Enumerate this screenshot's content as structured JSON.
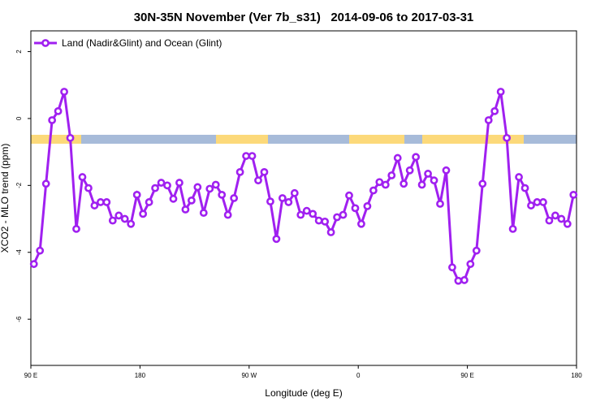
{
  "chart_data": {
    "type": "line",
    "title": "30N-35N November (Ver 7b_s31)   2014-09-06 to 2017-03-31",
    "x_label": "Longitude (deg E)",
    "y_label": "XCO2 - MLO trend (ppm)",
    "xlim": [
      90,
      540
    ],
    "ylim": [
      -7.38,
      2.62
    ],
    "xticks": [
      {
        "value": 90,
        "label": "90 E"
      },
      180,
      {
        "value": 270,
        "label": "90 W"
      },
      {
        "value": 360,
        "label": "0"
      },
      {
        "value": 450,
        "label": "90 E"
      },
      {
        "value": 540,
        "label": "180"
      }
    ],
    "yticks": [
      2,
      0,
      -2,
      -4,
      -6
    ],
    "legend": "top-left",
    "x": [
      92.5,
      97.5,
      102.5,
      107.5,
      112.5,
      117.5,
      122.5,
      127.5,
      132.5,
      137.5,
      142.5,
      147.5,
      152.5,
      157.5,
      162.5,
      167.5,
      172.5,
      177.5,
      182.5,
      187.5,
      192.5,
      197.5,
      202.5,
      207.5,
      212.5,
      217.5,
      222.5,
      227.5,
      232.5,
      237.5,
      242.5,
      247.5,
      252.5,
      257.5,
      262.5,
      267.5,
      272.5,
      277.5,
      282.5,
      287.5,
      292.5,
      297.5,
      302.5,
      307.5,
      312.5,
      317.5,
      322.5,
      327.5,
      332.5,
      337.5,
      342.5,
      347.5,
      352.5,
      357.5,
      362.5,
      367.5,
      372.5,
      377.5,
      382.5,
      387.5,
      392.5,
      397.5,
      402.5,
      407.5,
      412.5,
      417.5,
      422.5,
      427.5,
      432.5,
      437.5,
      442.5,
      447.5,
      452.5,
      457.5,
      462.5,
      467.5,
      472.5,
      477.5,
      482.5,
      487.5,
      492.5,
      497.5,
      502.5,
      507.5,
      512.5,
      517.5,
      522.5,
      527.5,
      532.5,
      537.5
    ],
    "series": [
      {
        "name": "Land (Nadir&Glint) and Ocean (Glint)",
        "color": "#a020f0",
        "values": [
          -4.35,
          -3.95,
          -1.95,
          -0.05,
          0.22,
          0.8,
          -0.58,
          -3.3,
          -1.75,
          -2.08,
          -2.6,
          -2.5,
          -2.5,
          -3.05,
          -2.9,
          -3.0,
          -3.15,
          -2.28,
          -2.85,
          -2.5,
          -2.08,
          -1.92,
          -2.0,
          -2.4,
          -1.92,
          -2.72,
          -2.45,
          -2.05,
          -2.82,
          -2.1,
          -1.98,
          -2.28,
          -2.88,
          -2.38,
          -1.6,
          -1.12,
          -1.12,
          -1.85,
          -1.6,
          -2.48,
          -3.6,
          -2.38,
          -2.5,
          -2.23,
          -2.88,
          -2.76,
          -2.85,
          -3.05,
          -3.08,
          -3.4,
          -2.95,
          -2.88,
          -2.3,
          -2.68,
          -3.15,
          -2.62,
          -2.15,
          -1.9,
          -1.98,
          -1.7,
          -1.18,
          -1.95,
          -1.55,
          -1.15,
          -1.98,
          -1.65,
          -1.85,
          -2.55,
          -1.55,
          -4.45,
          -4.85,
          -4.83,
          -4.35,
          -3.95,
          -1.95,
          -0.05,
          0.22,
          0.8,
          -0.58,
          -3.3,
          -1.75,
          -2.08,
          -2.6,
          -2.5,
          -2.5,
          -3.05,
          -2.9,
          -3.0,
          -3.15,
          -2.28
        ]
      }
    ]
  }
}
